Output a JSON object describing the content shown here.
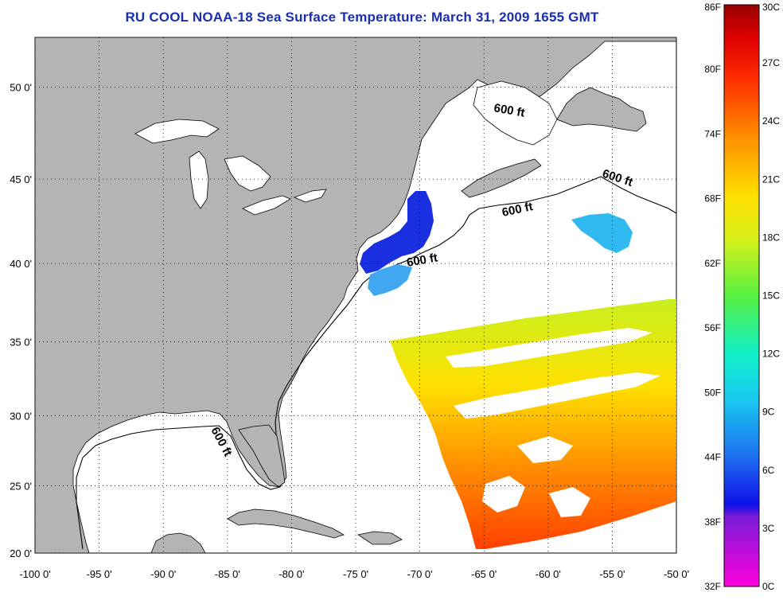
{
  "title": "RU COOL  NOAA-18  Sea Surface Temperature:  March 31, 2009 1655 GMT",
  "colors": {
    "land": "#b4b4b4",
    "ocean": "#ffffff",
    "title": "#1a2fb0",
    "coastline": "#000000"
  },
  "map": {
    "lon_range": [
      -100,
      -50
    ],
    "lat_range": [
      20,
      52.5
    ],
    "projection": "mercator",
    "grid": "dotted",
    "x_ticks": [
      "-100 0'",
      "-95 0'",
      "-90 0'",
      "-85 0'",
      "-80 0'",
      "-75 0'",
      "-70 0'",
      "-65 0'",
      "-60 0'",
      "-55 0'",
      "-50 0'"
    ],
    "y_ticks": [
      "50 0'",
      "45 0'",
      "40 0'",
      "35 0'",
      "30 0'",
      "25 0'",
      "20 0'"
    ],
    "contour_labels": [
      "600 ft",
      "600 ft",
      "600 ft",
      "600 ft",
      "600 ft"
    ]
  },
  "colorbar": {
    "colormap": "magenta-blue-cyan-green-yellow-orange-red",
    "fahrenheit_labels": [
      "86F",
      "80F",
      "74F",
      "68F",
      "62F",
      "56F",
      "50F",
      "44F",
      "38F",
      "32F"
    ],
    "celsius_labels": [
      "30C",
      "27C",
      "24C",
      "21C",
      "18C",
      "15C",
      "12C",
      "9C",
      "6C",
      "3C",
      "0C"
    ]
  }
}
